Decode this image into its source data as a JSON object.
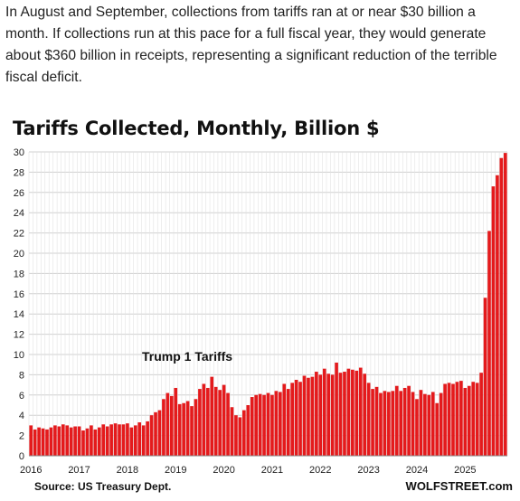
{
  "article": {
    "paragraph": "In August and September, collections from tariffs ran at or near $30 billion a month. If collections run at this pace for a full fiscal year, they would generate about $360 billion in receipts, representing a significant reduction of the terrible fiscal deficit."
  },
  "chart_data": {
    "type": "bar",
    "title": "Tariffs Collected, Monthly, Billion $",
    "xlabel": "",
    "ylabel": "",
    "ylim": [
      0,
      30
    ],
    "yticks": [
      "0",
      "2",
      "4",
      "6",
      "8",
      "10",
      "12",
      "14",
      "16",
      "18",
      "20",
      "22",
      "24",
      "26",
      "28",
      "30"
    ],
    "xticks": [
      "2016",
      "2017",
      "2018",
      "2019",
      "2020",
      "2021",
      "2022",
      "2023",
      "2024",
      "2025"
    ],
    "start": "2016-01",
    "grid": true,
    "bar_color": "#e41a1c",
    "annotation": "Trump 1 Tariffs",
    "source": "Source: US Treasury Dept.",
    "credit": "WOLFSTREET.com",
    "values": [
      3.0,
      2.6,
      2.8,
      2.7,
      2.6,
      2.8,
      3.0,
      2.9,
      3.1,
      3.0,
      2.8,
      2.9,
      2.9,
      2.5,
      2.7,
      3.0,
      2.6,
      2.8,
      3.1,
      2.9,
      3.1,
      3.2,
      3.1,
      3.1,
      3.2,
      2.8,
      3.0,
      3.3,
      3.0,
      3.4,
      4.0,
      4.3,
      4.5,
      5.6,
      6.2,
      5.9,
      6.7,
      5.1,
      5.2,
      5.4,
      4.9,
      5.6,
      6.6,
      7.1,
      6.7,
      7.8,
      6.8,
      6.5,
      7.0,
      6.2,
      4.8,
      4.0,
      3.8,
      4.5,
      5.0,
      5.8,
      6.0,
      6.1,
      6.0,
      6.2,
      6.0,
      6.4,
      6.3,
      7.1,
      6.6,
      7.2,
      7.5,
      7.3,
      7.9,
      7.7,
      7.8,
      8.3,
      8.0,
      8.6,
      8.1,
      8.0,
      9.2,
      8.2,
      8.3,
      8.6,
      8.5,
      8.4,
      8.7,
      8.1,
      7.2,
      6.6,
      6.8,
      6.2,
      6.4,
      6.3,
      6.4,
      6.9,
      6.4,
      6.7,
      6.9,
      6.3,
      5.6,
      6.5,
      6.1,
      6.0,
      6.3,
      5.2,
      6.2,
      7.1,
      7.2,
      7.1,
      7.3,
      7.4,
      6.7,
      6.9,
      7.3,
      7.2,
      8.2,
      15.6,
      22.2,
      26.6,
      27.7,
      29.4,
      29.9
    ]
  }
}
